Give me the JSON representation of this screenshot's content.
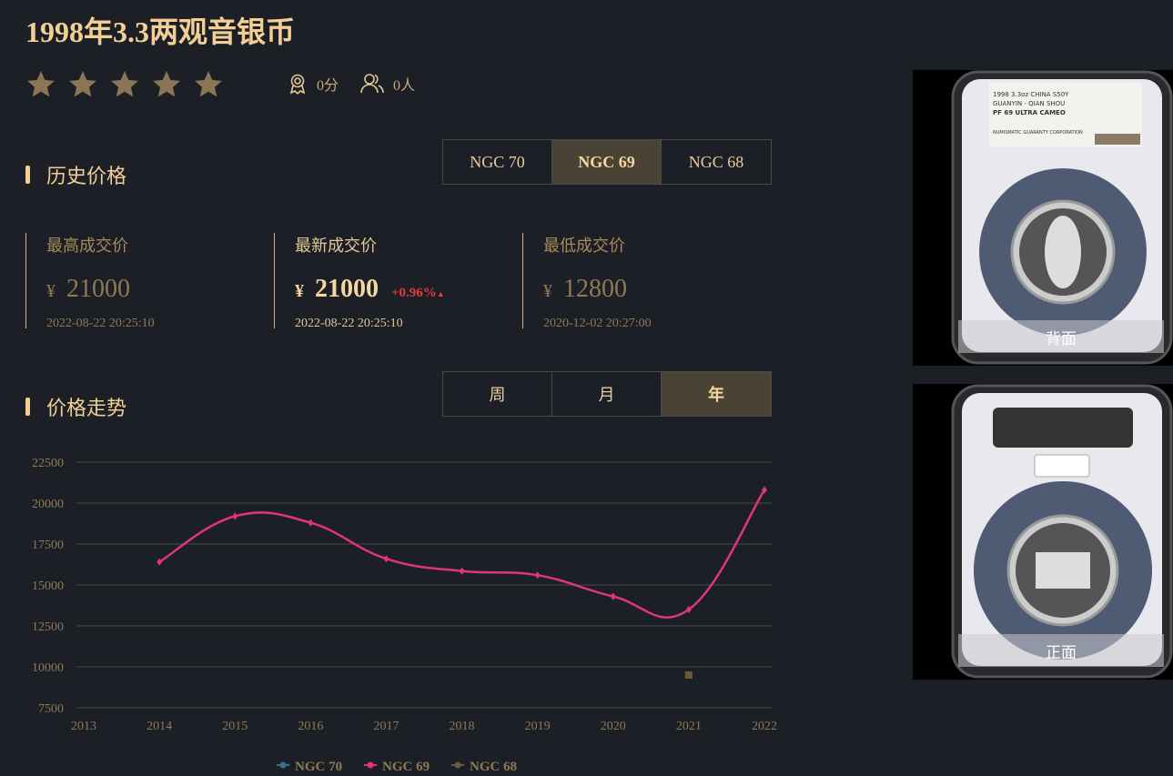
{
  "title": "1998年3.3两观音银币",
  "rating": {
    "stars": 5,
    "score": "0分",
    "people": "0人"
  },
  "history": {
    "heading": "历史价格",
    "grades": [
      "NGC 70",
      "NGC 69",
      "NGC 68"
    ],
    "active_grade": "NGC 69",
    "stats": [
      {
        "label": "最高成交价",
        "currency": "¥",
        "value": "21000",
        "time": "2022-08-22 20:25:10"
      },
      {
        "label": "最新成交价",
        "currency": "¥",
        "value": "21000",
        "change": "+0.96%",
        "time": "2022-08-22 20:25:10"
      },
      {
        "label": "最低成交价",
        "currency": "¥",
        "value": "12800",
        "time": "2020-12-02 20:27:00"
      }
    ]
  },
  "trend": {
    "heading": "价格走势",
    "periods": [
      "周",
      "月",
      "年"
    ],
    "active_period": "年"
  },
  "images": {
    "back_label": "背面",
    "front_label": "正面",
    "slab_label": [
      "1998 3.3oz CHINA S50Y",
      "GUANYIN - QIAN SHOU",
      "PF 69 ULTRA CAMEO",
      "NUMISMATIC GUARANTY CORPORATION"
    ]
  },
  "colors": {
    "accent": "#f3cf95",
    "ngc70": "#3a6f8f",
    "ngc69": "#e0357a",
    "ngc68": "#6b5a3a",
    "up": "#e23c3c"
  },
  "chart_data": {
    "type": "line",
    "x": [
      2013,
      2014,
      2015,
      2016,
      2017,
      2018,
      2019,
      2020,
      2021,
      2022
    ],
    "ylim": [
      7500,
      22500
    ],
    "yticks": [
      7500,
      10000,
      12500,
      15000,
      17500,
      20000,
      22500
    ],
    "grid": true,
    "legend": "bottom",
    "series": [
      {
        "name": "NGC 70",
        "values": [
          null,
          null,
          null,
          null,
          null,
          null,
          null,
          null,
          null,
          null
        ]
      },
      {
        "name": "NGC 69",
        "values": [
          null,
          16400,
          19200,
          18800,
          16600,
          15850,
          15600,
          14300,
          13500,
          20800
        ]
      },
      {
        "name": "NGC 68",
        "values": [
          null,
          null,
          null,
          null,
          null,
          null,
          null,
          null,
          9500,
          null
        ]
      }
    ]
  }
}
